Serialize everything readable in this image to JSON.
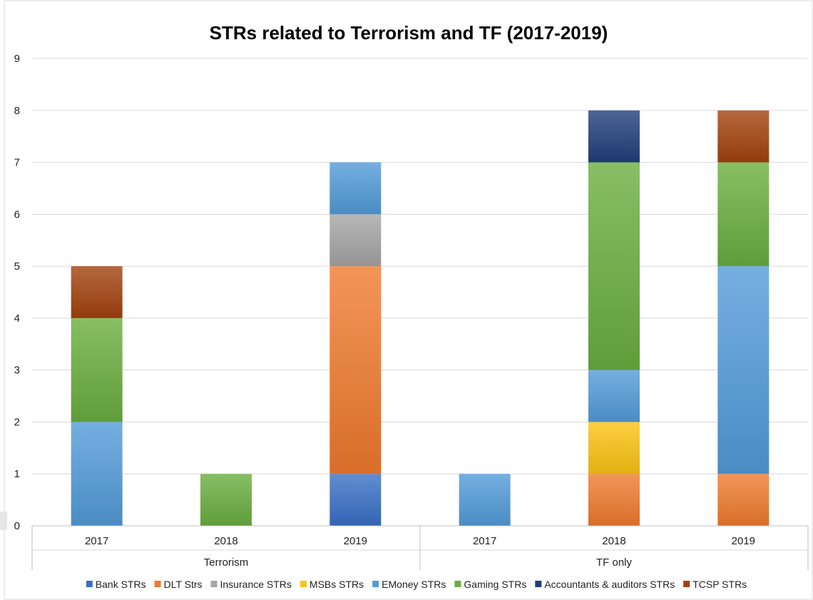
{
  "chart_data": {
    "type": "bar",
    "stacked": true,
    "title": "STRs related to Terrorism and TF (2017-2019)",
    "xlabel": "",
    "ylabel": "",
    "ylim": [
      0,
      9
    ],
    "yticks": [
      "0",
      "1",
      "2",
      "3",
      "4",
      "5",
      "6",
      "7",
      "8",
      "9"
    ],
    "grid": true,
    "legend_position": "bottom",
    "categories": [
      "2017",
      "2018",
      "2019",
      "2017",
      "2018",
      "2019"
    ],
    "groups": [
      {
        "label": "Terrorism",
        "categories": [
          "2017",
          "2018",
          "2019"
        ]
      },
      {
        "label": "TF only",
        "categories": [
          "2017",
          "2018",
          "2019"
        ]
      }
    ],
    "series": [
      {
        "name": "Bank STRs",
        "color": "#3a6fc6",
        "values": [
          0,
          0,
          1,
          0,
          0,
          0
        ]
      },
      {
        "name": "DLT Strs",
        "color": "#f07a2e",
        "values": [
          0,
          0,
          4,
          0,
          1,
          1
        ]
      },
      {
        "name": "Insurance STRs",
        "color": "#a5a5a5",
        "values": [
          0,
          0,
          1,
          0,
          0,
          0
        ]
      },
      {
        "name": "MSBs STRs",
        "color": "#fbc313",
        "values": [
          0,
          0,
          0,
          0,
          1,
          0
        ]
      },
      {
        "name": "EMoney STRs",
        "color": "#529bd9",
        "values": [
          2,
          0,
          1,
          1,
          1,
          4
        ]
      },
      {
        "name": "Gaming STRs",
        "color": "#6aae3f",
        "values": [
          2,
          1,
          0,
          0,
          4,
          2
        ]
      },
      {
        "name": "Accountants & auditors STRs",
        "color": "#203f7a",
        "values": [
          0,
          0,
          0,
          0,
          1,
          0
        ]
      },
      {
        "name": "TCSP STRs",
        "color": "#a3420e",
        "values": [
          1,
          0,
          0,
          0,
          0,
          1
        ]
      }
    ]
  }
}
